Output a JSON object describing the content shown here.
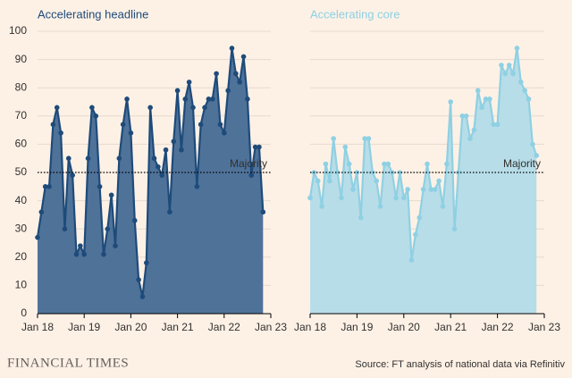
{
  "chart_data": [
    {
      "type": "area",
      "title": "Accelerating headline",
      "color": "#1e4b7a",
      "fill": "#4f7299",
      "x": [
        0,
        1,
        2,
        3,
        4,
        5,
        6,
        7,
        8,
        9,
        10,
        11,
        12,
        13,
        14,
        15,
        16,
        17,
        18,
        19,
        20,
        21,
        22,
        23,
        24,
        25,
        26,
        27,
        28,
        29,
        30,
        31,
        32,
        33,
        34,
        35,
        36,
        37,
        38,
        39,
        40,
        41,
        42,
        43,
        44,
        45,
        46,
        47,
        48,
        49,
        50,
        51,
        52,
        53,
        54,
        55,
        56,
        57,
        58
      ],
      "values": [
        27,
        36,
        45,
        45,
        67,
        73,
        64,
        30,
        55,
        49,
        21,
        24,
        21,
        55,
        73,
        70,
        45,
        21,
        30,
        42,
        24,
        55,
        67,
        76,
        64,
        33,
        12,
        6,
        18,
        73,
        55,
        52,
        49,
        58,
        36,
        61,
        79,
        58,
        76,
        82,
        73,
        45,
        67,
        73,
        76,
        76,
        85,
        67,
        64,
        79,
        94,
        85,
        82,
        91,
        76,
        49,
        59,
        59,
        36
      ],
      "xlim": [
        0,
        60
      ],
      "xticks": [
        {
          "value": 0,
          "label": "Jan 18"
        },
        {
          "value": 12,
          "label": "Jan 19"
        },
        {
          "value": 24,
          "label": "Jan 20"
        },
        {
          "value": 36,
          "label": "Jan 21"
        },
        {
          "value": 48,
          "label": "Jan 22"
        },
        {
          "value": 60,
          "label": "Jan 23"
        }
      ],
      "ylim": [
        0,
        100
      ],
      "yticks": [
        0,
        10,
        20,
        30,
        40,
        50,
        60,
        70,
        80,
        90,
        100
      ],
      "reference": {
        "value": 50,
        "label": "Majority"
      }
    },
    {
      "type": "area",
      "title": "Accelerating core",
      "color": "#8fd0e3",
      "fill": "#b7dde8",
      "x": [
        0,
        1,
        2,
        3,
        4,
        5,
        6,
        7,
        8,
        9,
        10,
        11,
        12,
        13,
        14,
        15,
        16,
        17,
        18,
        19,
        20,
        21,
        22,
        23,
        24,
        25,
        26,
        27,
        28,
        29,
        30,
        31,
        32,
        33,
        34,
        35,
        36,
        37,
        38,
        39,
        40,
        41,
        42,
        43,
        44,
        45,
        46,
        47,
        48,
        49,
        50,
        51,
        52,
        53,
        54,
        55,
        56,
        57,
        58
      ],
      "values": [
        41,
        50,
        47,
        38,
        53,
        47,
        62,
        50,
        41,
        59,
        53,
        44,
        50,
        34,
        62,
        62,
        50,
        47,
        38,
        53,
        53,
        50,
        41,
        50,
        41,
        44,
        19,
        28,
        34,
        44,
        53,
        44,
        44,
        47,
        38,
        53,
        75,
        30,
        50,
        70,
        70,
        62,
        65,
        79,
        73,
        76,
        76,
        67,
        67,
        88,
        85,
        88,
        85,
        94,
        82,
        79,
        76,
        60,
        56
      ],
      "xlim": [
        0,
        60
      ],
      "xticks": [
        {
          "value": 0,
          "label": "Jan 18"
        },
        {
          "value": 12,
          "label": "Jan 19"
        },
        {
          "value": 24,
          "label": "Jan 20"
        },
        {
          "value": 36,
          "label": "Jan 21"
        },
        {
          "value": 48,
          "label": "Jan 22"
        },
        {
          "value": 60,
          "label": "Jan 23"
        }
      ],
      "ylim": [
        0,
        100
      ],
      "yticks": [
        0,
        10,
        20,
        30,
        40,
        50,
        60,
        70,
        80,
        90,
        100
      ],
      "reference": {
        "value": 50,
        "label": "Majority"
      }
    }
  ],
  "brand": "FINANCIAL TIMES",
  "source": "Source: FT analysis of national data via Refinitiv"
}
